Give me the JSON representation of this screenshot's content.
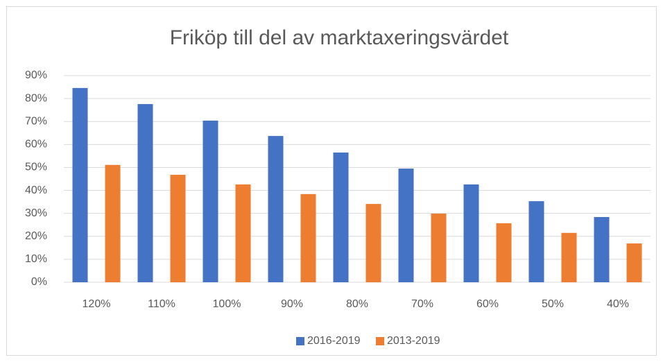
{
  "chart_data": {
    "type": "bar",
    "title": "Friköp till del av marktaxeringsvärdet",
    "categories": [
      "120%",
      "110%",
      "100%",
      "90%",
      "80%",
      "70%",
      "60%",
      "50%",
      "40%"
    ],
    "series": [
      {
        "name": "2016-2019",
        "color": "#4472c4",
        "values": [
          84.6,
          77.6,
          70.4,
          63.7,
          56.5,
          49.5,
          42.6,
          35.3,
          28.4
        ]
      },
      {
        "name": "2013-2019",
        "color": "#ed7d31",
        "values": [
          51.1,
          46.8,
          42.6,
          38.4,
          34.1,
          29.9,
          25.7,
          21.5,
          16.9
        ]
      }
    ],
    "ylim": [
      0,
      90
    ],
    "yticks": [
      {
        "value": 0,
        "label": "0%"
      },
      {
        "value": 10,
        "label": "10%"
      },
      {
        "value": 20,
        "label": "20%"
      },
      {
        "value": 30,
        "label": "30%"
      },
      {
        "value": 40,
        "label": "40%"
      },
      {
        "value": 50,
        "label": "50%"
      },
      {
        "value": 60,
        "label": "60%"
      },
      {
        "value": 70,
        "label": "70%"
      },
      {
        "value": 80,
        "label": "80%"
      },
      {
        "value": 90,
        "label": "90%"
      }
    ],
    "grid": true,
    "legend": "bottom"
  }
}
